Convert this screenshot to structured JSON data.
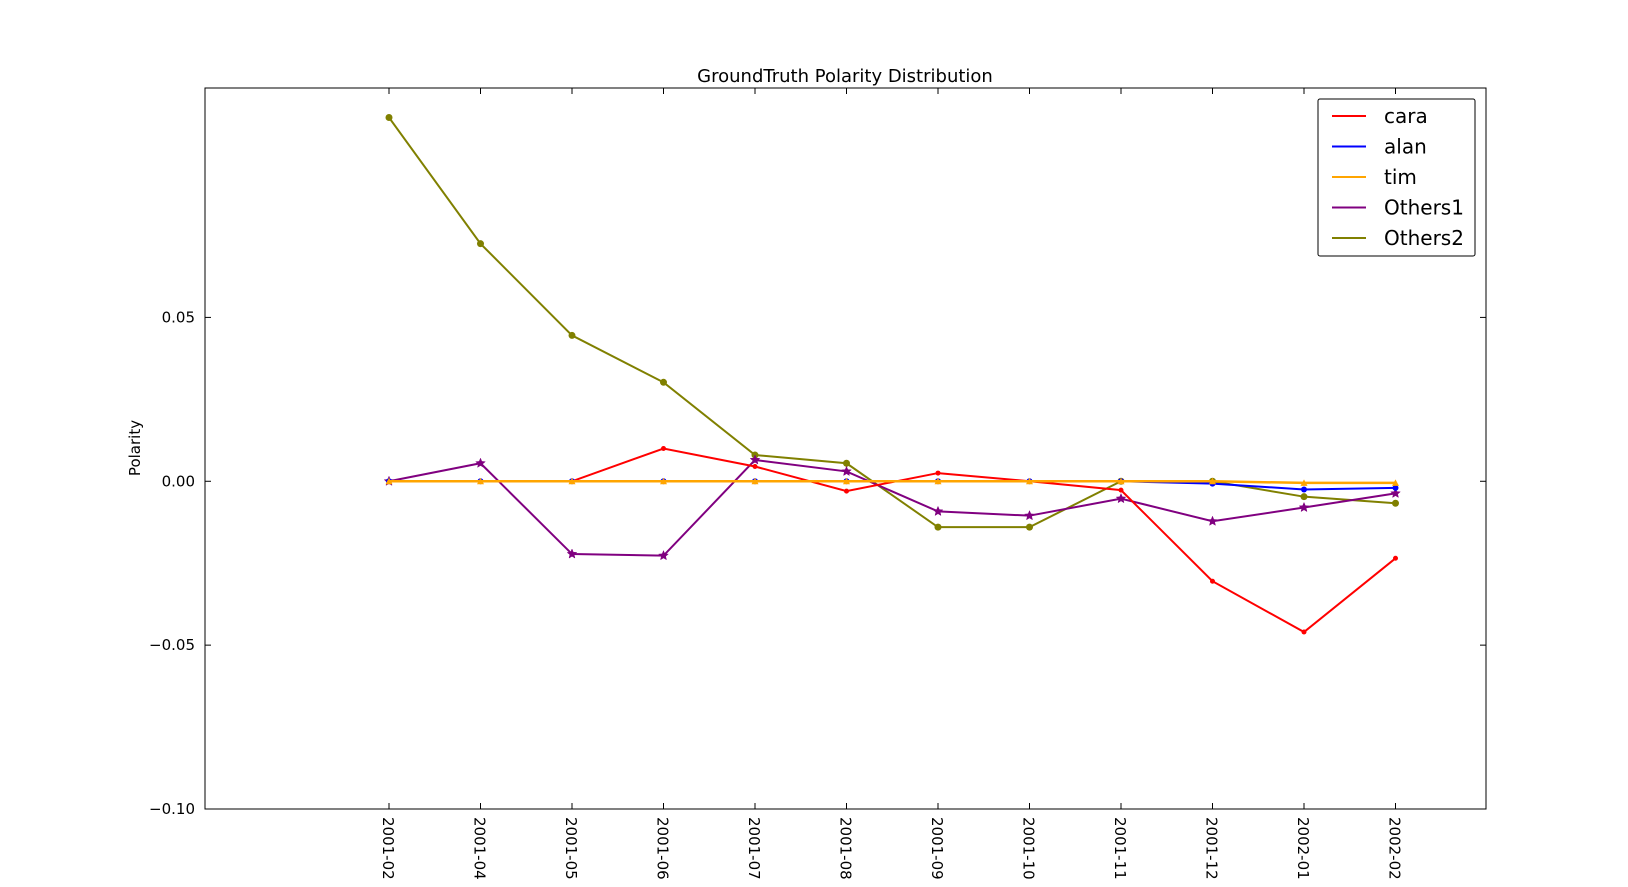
{
  "chart_data": {
    "type": "line",
    "title": "GroundTruth Polarity Distribution",
    "xlabel": "",
    "ylabel": "Polarity",
    "categories": [
      "2001-02",
      "2001-04",
      "2001-05",
      "2001-06",
      "2001-07",
      "2001-08",
      "2001-09",
      "2001-10",
      "2001-11",
      "2001-12",
      "2002-01",
      "2002-02"
    ],
    "yticks": [
      0.05,
      0.0,
      -0.05,
      -0.1
    ],
    "ytick_labels": [
      "0.05",
      "0.00",
      "−0.05",
      "−0.10"
    ],
    "ylim": [
      -0.1,
      0.12
    ],
    "grid": false,
    "legend_position": "top-right",
    "series": [
      {
        "name": "cara",
        "color": "#ff0000",
        "marker": "dot",
        "values": [
          0.0,
          0.0,
          0.0,
          0.01,
          0.0045,
          -0.003,
          0.0025,
          0.0,
          -0.0027,
          -0.0305,
          -0.046,
          -0.0235
        ]
      },
      {
        "name": "alan",
        "color": "#0000ff",
        "marker": "circle",
        "values": [
          0.0,
          0.0,
          0.0,
          0.0,
          0.0,
          0.0,
          0.0,
          0.0,
          0.0,
          -0.0007,
          -0.0025,
          -0.002
        ]
      },
      {
        "name": "tim",
        "color": "#ffa500",
        "marker": "triangle",
        "values": [
          0.0,
          0.0,
          0.0,
          0.0,
          0.0,
          0.0,
          0.0,
          0.0,
          0.0,
          0.0,
          -0.0005,
          -0.0005
        ]
      },
      {
        "name": "Others1",
        "color": "#800080",
        "marker": "star",
        "values": [
          0.0,
          0.0055,
          -0.0222,
          -0.0227,
          0.0065,
          0.003,
          -0.0092,
          -0.0105,
          -0.0053,
          -0.0122,
          -0.008,
          -0.0037
        ]
      },
      {
        "name": "Others2",
        "color": "#808000",
        "marker": "dot",
        "values": [
          0.111,
          0.0725,
          0.0445,
          0.0302,
          0.008,
          0.0055,
          -0.014,
          -0.014,
          0.0,
          0.0,
          -0.0047,
          -0.0067
        ]
      }
    ]
  }
}
